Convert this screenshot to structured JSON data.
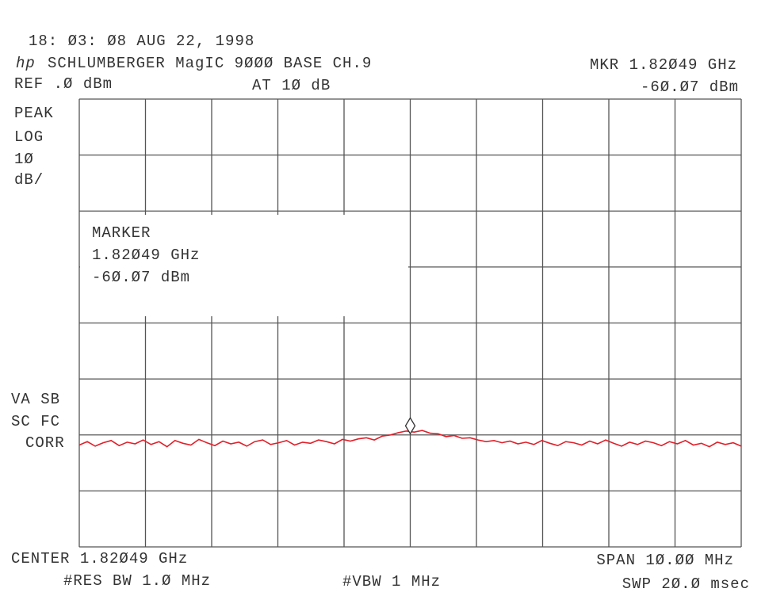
{
  "chart_data": {
    "type": "line",
    "timestamp": "18: Ø3: Ø8 AUG 22, 1998",
    "title": "SCHLUMBERGER MagIC 9ØØØ BASE CH.9",
    "annotations": {
      "marker_freq": "MKR 1.82Ø49 GHz",
      "marker_level": "-6Ø.Ø7 dBm",
      "reference": "REF .Ø dBm",
      "attenuation": "AT 1Ø dB",
      "detector": [
        "PEAK",
        "LOG",
        "1Ø",
        "dB/"
      ],
      "marker_box": [
        "MARKER",
        "1.82Ø49 GHz",
        "-6Ø.Ø7 dBm"
      ],
      "flags": [
        "VA SB",
        "SC FC",
        "CORR"
      ],
      "center": "CENTER 1.82Ø49 GHz",
      "span": "SPAN 1Ø.ØØ MHz",
      "rbw": "#RES BW 1.Ø MHz",
      "vbw": "#VBW 1 MHz",
      "sweep": "SWP 2Ø.Ø msec"
    },
    "marker": -60.07,
    "color": "#e0202a",
    "ylim": [
      -80,
      0
    ],
    "yticks": [
      -80,
      -70,
      -60,
      -50,
      -40,
      -30,
      -20,
      -10,
      0
    ],
    "grid": true,
    "values": [
      -61.8,
      -61.2,
      -62.0,
      -61.4,
      -61.0,
      -61.9,
      -61.3,
      -61.6,
      -60.9,
      -61.7,
      -61.2,
      -62.1,
      -61.0,
      -61.5,
      -61.8,
      -60.8,
      -61.4,
      -61.9,
      -61.1,
      -61.6,
      -61.3,
      -62.0,
      -61.2,
      -60.9,
      -61.7,
      -61.4,
      -61.0,
      -61.8,
      -61.3,
      -61.5,
      -60.9,
      -61.2,
      -61.6,
      -60.8,
      -61.1,
      -60.7,
      -60.5,
      -60.9,
      -60.2,
      -60.0,
      -59.6,
      -59.3,
      -59.5,
      -59.2,
      -59.7,
      -59.8,
      -60.3,
      -60.1,
      -60.6,
      -60.5,
      -60.9,
      -61.2,
      -61.0,
      -61.4,
      -61.1,
      -61.6,
      -61.3,
      -61.7,
      -61.0,
      -61.5,
      -61.9,
      -61.2,
      -61.4,
      -61.8,
      -61.1,
      -61.6,
      -60.9,
      -61.5,
      -62.0,
      -61.3,
      -61.7,
      -61.1,
      -61.4,
      -61.9,
      -61.2,
      -61.6,
      -61.0,
      -61.8,
      -61.5,
      -62.1,
      -61.3,
      -61.7,
      -61.4,
      -62.0
    ]
  }
}
